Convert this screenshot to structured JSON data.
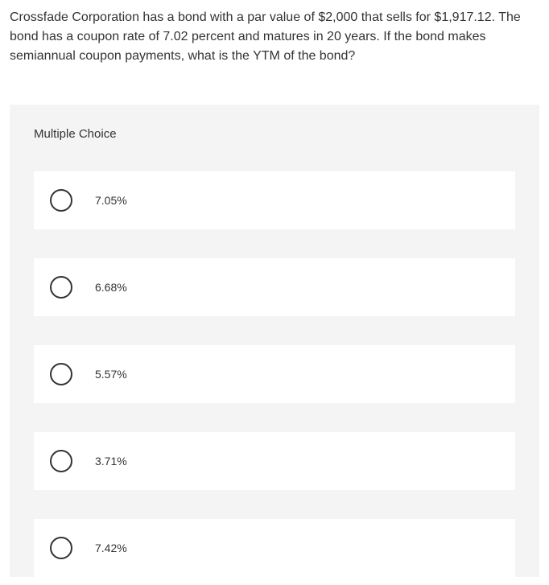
{
  "question": {
    "text": "Crossfade Corporation has a bond with a par value of $2,000 that sells for $1,917.12. The bond has a coupon rate of 7.02 percent and matures in 20 years. If the bond makes semiannual coupon payments, what is the YTM of the bond?"
  },
  "mc": {
    "heading": "Multiple Choice",
    "options": [
      {
        "label": "7.05%"
      },
      {
        "label": "6.68%"
      },
      {
        "label": "5.57%"
      },
      {
        "label": "3.71%"
      },
      {
        "label": "7.42%"
      }
    ]
  },
  "styling": {
    "background_color": "#ffffff",
    "panel_background": "#f4f4f4",
    "option_background": "#ffffff",
    "text_color": "#333333",
    "radio_border_color": "#333333",
    "question_fontsize": 16,
    "heading_fontsize": 15,
    "option_fontsize": 14,
    "radio_size": 28
  }
}
